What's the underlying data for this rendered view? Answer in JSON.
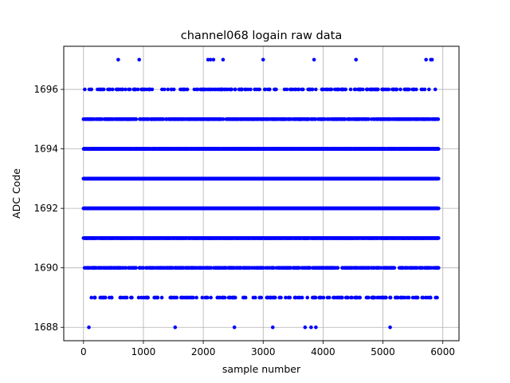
{
  "chart_data": {
    "type": "scatter",
    "title": "channel068 logain raw data",
    "xlabel": "sample number",
    "ylabel": "ADC Code",
    "xlim": [
      -330,
      6270
    ],
    "ylim": [
      1687.55,
      1697.45
    ],
    "xticks": [
      0,
      1000,
      2000,
      3000,
      4000,
      5000,
      6000
    ],
    "yticks": [
      1688,
      1690,
      1692,
      1694,
      1696
    ],
    "grid": true,
    "marker_color": "#0000ff",
    "n_samples": 5930,
    "level_distribution": {
      "1688": 0.0012,
      "1689": 0.02,
      "1690": 0.06,
      "1691": 0.16,
      "1692": 0.25,
      "1693": 0.25,
      "1694": 0.16,
      "1695": 0.065,
      "1696": 0.025,
      "1697": 0.0024
    },
    "rare_points": [
      {
        "x": 90,
        "y": 1688
      },
      {
        "x": 1530,
        "y": 1688
      },
      {
        "x": 2520,
        "y": 1688
      },
      {
        "x": 3160,
        "y": 1688
      },
      {
        "x": 3700,
        "y": 1688
      },
      {
        "x": 3800,
        "y": 1688
      },
      {
        "x": 3880,
        "y": 1688
      },
      {
        "x": 5120,
        "y": 1688
      },
      {
        "x": 580,
        "y": 1697
      },
      {
        "x": 930,
        "y": 1697
      },
      {
        "x": 2080,
        "y": 1697
      },
      {
        "x": 2120,
        "y": 1697
      },
      {
        "x": 2170,
        "y": 1697
      },
      {
        "x": 2330,
        "y": 1697
      },
      {
        "x": 3000,
        "y": 1697
      },
      {
        "x": 3850,
        "y": 1697
      },
      {
        "x": 4550,
        "y": 1697
      },
      {
        "x": 5720,
        "y": 1697
      },
      {
        "x": 5800,
        "y": 1697
      },
      {
        "x": 5820,
        "y": 1697
      }
    ]
  }
}
